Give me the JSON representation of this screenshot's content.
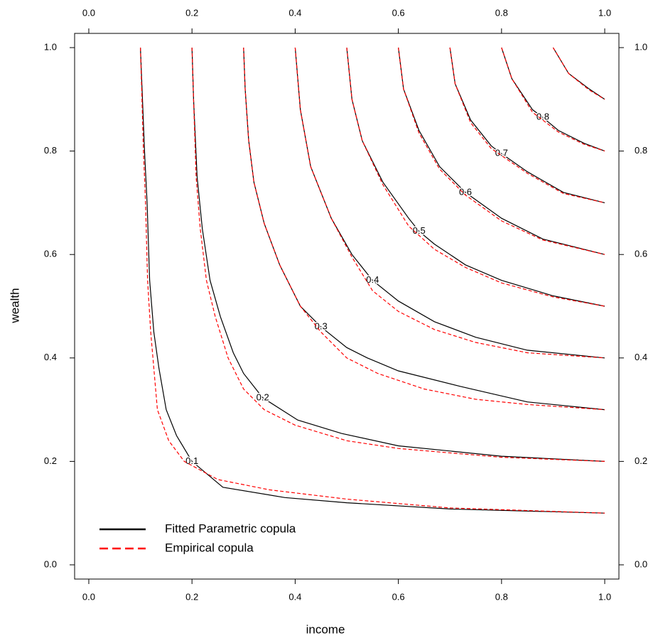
{
  "chart_data": {
    "type": "contour",
    "xlabel": "income",
    "ylabel": "wealth",
    "xlim": [
      -0.0275,
      1.0275
    ],
    "ylim": [
      -0.0275,
      1.0275
    ],
    "xticks": [
      {
        "value": 0,
        "label": "0.0"
      },
      0.2,
      0.4,
      0.6,
      0.8,
      {
        "value": 1,
        "label": "1.0"
      }
    ],
    "yticks": [
      {
        "value": 0,
        "label": "0.0"
      },
      0.2,
      0.4,
      0.6,
      0.8,
      {
        "value": 1,
        "label": "1.0"
      }
    ],
    "legend": "bottom-left",
    "series": [
      {
        "name": "Fitted Parametric copula",
        "color": "#000000",
        "dash": false,
        "lines": [
          {
            "level": 0.1,
            "x": [
              0.1,
              0.104,
              0.108,
              0.113,
              0.118,
              0.126,
              0.136,
              0.15,
              0.17,
              0.2,
              0.26,
              0.38,
              0.5,
              0.7,
              1.0
            ],
            "y": [
              1,
              0.9,
              0.8,
              0.7,
              0.55,
              0.45,
              0.38,
              0.3,
              0.25,
              0.2,
              0.15,
              0.13,
              0.12,
              0.108,
              0.1
            ]
          },
          {
            "level": 0.2,
            "x": [
              0.2,
              0.203,
              0.21,
              0.22,
              0.235,
              0.255,
              0.28,
              0.3,
              0.337,
              0.405,
              0.49,
              0.6,
              0.8,
              1.0
            ],
            "y": [
              1,
              0.9,
              0.75,
              0.65,
              0.55,
              0.48,
              0.41,
              0.37,
              0.323,
              0.28,
              0.254,
              0.23,
              0.21,
              0.2
            ]
          },
          {
            "level": 0.3,
            "x": [
              0.3,
              0.303,
              0.31,
              0.32,
              0.34,
              0.37,
              0.41,
              0.45,
              0.5,
              0.54,
              0.6,
              0.72,
              0.85,
              1.0
            ],
            "y": [
              1,
              0.92,
              0.82,
              0.74,
              0.66,
              0.58,
              0.5,
              0.46,
              0.42,
              0.4,
              0.375,
              0.345,
              0.315,
              0.3
            ]
          },
          {
            "level": 0.4,
            "x": [
              0.4,
              0.41,
              0.43,
              0.47,
              0.51,
              0.55,
              0.6,
              0.67,
              0.75,
              0.85,
              1.0
            ],
            "y": [
              1,
              0.88,
              0.77,
              0.67,
              0.6,
              0.55,
              0.51,
              0.47,
              0.44,
              0.415,
              0.4
            ]
          },
          {
            "level": 0.5,
            "x": [
              0.5,
              0.51,
              0.53,
              0.57,
              0.62,
              0.64,
              0.67,
              0.73,
              0.8,
              0.9,
              1.0
            ],
            "y": [
              1,
              0.9,
              0.82,
              0.74,
              0.67,
              0.645,
              0.62,
              0.58,
              0.55,
              0.52,
              0.5
            ]
          },
          {
            "level": 0.6,
            "x": [
              0.6,
              0.61,
              0.64,
              0.68,
              0.73,
              0.8,
              0.88,
              1.0
            ],
            "y": [
              1,
              0.92,
              0.84,
              0.77,
              0.72,
              0.67,
              0.63,
              0.6
            ]
          },
          {
            "level": 0.7,
            "x": [
              0.7,
              0.71,
              0.74,
              0.78,
              0.8,
              0.85,
              0.92,
              1.0
            ],
            "y": [
              1,
              0.93,
              0.86,
              0.81,
              0.795,
              0.76,
              0.72,
              0.7
            ]
          },
          {
            "level": 0.8,
            "x": [
              0.8,
              0.82,
              0.86,
              0.88,
              0.91,
              0.96,
              1.0
            ],
            "y": [
              1,
              0.94,
              0.88,
              0.865,
              0.84,
              0.815,
              0.8
            ]
          },
          {
            "x": [
              0.9,
              0.93,
              0.97,
              1.0
            ],
            "y": [
              1,
              0.95,
              0.92,
              0.9
            ]
          }
        ]
      },
      {
        "name": "Empirical copula",
        "color": "#ff0000",
        "dash": true,
        "lines": [
          {
            "x": [
              0.1,
              0.103,
              0.106,
              0.11,
              0.114,
              0.12,
              0.133,
              0.155,
              0.185,
              0.25,
              0.35,
              0.5,
              0.7,
              1.0
            ],
            "y": [
              1,
              0.9,
              0.8,
              0.7,
              0.55,
              0.45,
              0.3,
              0.24,
              0.2,
              0.165,
              0.145,
              0.127,
              0.11,
              0.1
            ]
          },
          {
            "x": [
              0.2,
              0.203,
              0.208,
              0.216,
              0.228,
              0.245,
              0.27,
              0.3,
              0.34,
              0.4,
              0.5,
              0.6,
              0.8,
              1.0
            ],
            "y": [
              1,
              0.9,
              0.75,
              0.65,
              0.55,
              0.48,
              0.4,
              0.34,
              0.3,
              0.27,
              0.24,
              0.225,
              0.208,
              0.2
            ]
          },
          {
            "x": [
              0.3,
              0.303,
              0.31,
              0.32,
              0.34,
              0.37,
              0.41,
              0.45,
              0.5,
              0.56,
              0.65,
              0.75,
              0.85,
              1.0
            ],
            "y": [
              1,
              0.92,
              0.82,
              0.74,
              0.66,
              0.58,
              0.5,
              0.45,
              0.4,
              0.37,
              0.34,
              0.32,
              0.31,
              0.3
            ]
          },
          {
            "x": [
              0.4,
              0.41,
              0.43,
              0.47,
              0.51,
              0.55,
              0.6,
              0.67,
              0.75,
              0.85,
              1.0
            ],
            "y": [
              1,
              0.88,
              0.77,
              0.67,
              0.595,
              0.53,
              0.49,
              0.455,
              0.43,
              0.41,
              0.4
            ]
          },
          {
            "x": [
              0.5,
              0.51,
              0.53,
              0.57,
              0.62,
              0.67,
              0.73,
              0.8,
              0.9,
              1.0
            ],
            "y": [
              1,
              0.9,
              0.82,
              0.735,
              0.655,
              0.61,
              0.575,
              0.545,
              0.518,
              0.5
            ]
          },
          {
            "x": [
              0.6,
              0.61,
              0.64,
              0.68,
              0.73,
              0.8,
              0.88,
              1.0
            ],
            "y": [
              1,
              0.92,
              0.835,
              0.765,
              0.715,
              0.665,
              0.628,
              0.6
            ]
          },
          {
            "x": [
              0.7,
              0.71,
              0.74,
              0.78,
              0.85,
              0.92,
              1.0
            ],
            "y": [
              1,
              0.93,
              0.855,
              0.805,
              0.757,
              0.718,
              0.7
            ]
          },
          {
            "x": [
              0.8,
              0.82,
              0.86,
              0.91,
              0.96,
              1.0
            ],
            "y": [
              1,
              0.94,
              0.875,
              0.837,
              0.813,
              0.8
            ]
          },
          {
            "x": [
              0.9,
              0.93,
              0.97,
              1.0
            ],
            "y": [
              1,
              0.95,
              0.918,
              0.9
            ]
          }
        ]
      }
    ]
  }
}
